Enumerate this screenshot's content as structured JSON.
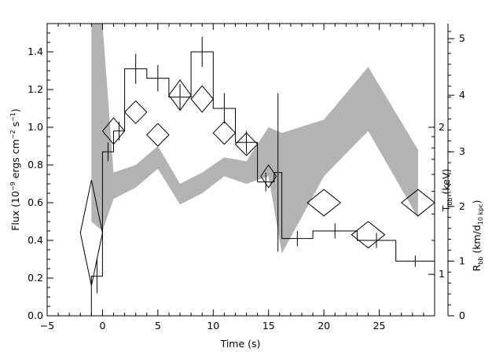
{
  "chart_data": {
    "type": "line",
    "xlabel": "Time (s)",
    "ylabel_left": {
      "main": "Flux (10",
      "sup1": "−9",
      "mid1": " ergs cm",
      "sup2": "−2",
      "mid2": " s",
      "sup3": "−1",
      "end": ")"
    },
    "ylabel_right_inner": {
      "main": "T",
      "sub": "bb",
      "end": " (keV)"
    },
    "ylabel_right_outer": {
      "main": "R",
      "sub": "bb",
      "mid": " (km/d",
      "sub2": "10 kpc",
      "end": ")"
    },
    "xlim": [
      -5,
      30
    ],
    "ylim": [
      0,
      1.55
    ],
    "x_ticks": [
      {
        "v": -5,
        "label": "−5"
      },
      {
        "v": 0,
        "label": "0"
      },
      {
        "v": 5,
        "label": "5"
      },
      {
        "v": 10,
        "label": "10"
      },
      {
        "v": 15,
        "label": "15"
      },
      {
        "v": 20,
        "label": "20"
      },
      {
        "v": 25,
        "label": "25"
      }
    ],
    "y_ticks": [
      {
        "v": 0.0,
        "label": "0.0"
      },
      {
        "v": 0.2,
        "label": "0.2"
      },
      {
        "v": 0.4,
        "label": "0.4"
      },
      {
        "v": 0.6,
        "label": "0.6"
      },
      {
        "v": 0.8,
        "label": "0.8"
      },
      {
        "v": 1.0,
        "label": "1.0"
      },
      {
        "v": 1.2,
        "label": "1.2"
      },
      {
        "v": 1.4,
        "label": "1.4"
      }
    ],
    "right_inner_axis": {
      "scale": "log",
      "ticks": [
        {
          "v": 1,
          "label": "1",
          "flux": 0.22
        },
        {
          "v": 2,
          "label": "2",
          "flux": 1.0
        }
      ],
      "minor_flux": [
        0.4,
        0.54,
        0.66,
        0.75,
        0.83,
        0.89,
        0.95
      ]
    },
    "right_outer_axis": {
      "scale": "linear",
      "ticks": [
        {
          "v": 0,
          "label": "0",
          "flux": 0.0
        },
        {
          "v": 1,
          "label": "1",
          "flux": 0.29
        },
        {
          "v": 2,
          "label": "2",
          "flux": 0.58
        },
        {
          "v": 3,
          "label": "3",
          "flux": 0.87
        },
        {
          "v": 4,
          "label": "4",
          "flux": 1.17
        },
        {
          "v": 5,
          "label": "5",
          "flux": 1.47
        }
      ]
    },
    "flux_histogram": [
      {
        "x0": -1.0,
        "x1": 0.0,
        "y": 0.21,
        "err": 0.09
      },
      {
        "x0": 0.0,
        "x1": 1.0,
        "y": 0.87,
        "err": 0.05
      },
      {
        "x0": 1.0,
        "x1": 2.0,
        "y": 0.98,
        "err": 0.05
      },
      {
        "x0": 2.0,
        "x1": 4.0,
        "y": 1.31,
        "err": 0.08
      },
      {
        "x0": 4.0,
        "x1": 6.0,
        "y": 1.26,
        "err": 0.07
      },
      {
        "x0": 6.0,
        "x1": 8.0,
        "y": 1.16,
        "err": 0.07
      },
      {
        "x0": 8.0,
        "x1": 10.0,
        "y": 1.4,
        "err": 0.08
      },
      {
        "x0": 10.0,
        "x1": 12.0,
        "y": 1.1,
        "err": 0.08
      },
      {
        "x0": 12.0,
        "x1": 14.0,
        "y": 0.92,
        "err": 0.06
      },
      {
        "x0": 14.0,
        "x1": 15.5,
        "y": 0.71,
        "err": 0.05
      },
      {
        "x0": 15.5,
        "x1": 16.2,
        "y": 0.76,
        "err": 0.42
      },
      {
        "x0": 16.2,
        "x1": 19.0,
        "y": 0.41,
        "err": 0.04
      },
      {
        "x0": 19.0,
        "x1": 23.0,
        "y": 0.45,
        "err": 0.04
      },
      {
        "x0": 23.0,
        "x1": 26.5,
        "y": 0.4,
        "err": 0.04
      },
      {
        "x0": 26.5,
        "x1": 30.0,
        "y": 0.29,
        "err": 0.03
      }
    ],
    "temperature_diamonds": [
      {
        "x": -1.0,
        "xerr": 1.0,
        "y": 0.44,
        "yerr": 0.28
      },
      {
        "x": 1.0,
        "xerr": 1.0,
        "y": 0.98,
        "yerr": 0.07
      },
      {
        "x": 3.0,
        "xerr": 1.0,
        "y": 1.08,
        "yerr": 0.06
      },
      {
        "x": 5.0,
        "xerr": 1.0,
        "y": 0.96,
        "yerr": 0.06
      },
      {
        "x": 7.0,
        "xerr": 1.0,
        "y": 1.17,
        "yerr": 0.08
      },
      {
        "x": 9.0,
        "xerr": 1.0,
        "y": 1.15,
        "yerr": 0.07
      },
      {
        "x": 11.0,
        "xerr": 1.0,
        "y": 0.97,
        "yerr": 0.06
      },
      {
        "x": 13.0,
        "xerr": 1.0,
        "y": 0.91,
        "yerr": 0.06
      },
      {
        "x": 15.0,
        "xerr": 0.7,
        "y": 0.74,
        "yerr": 0.06
      },
      {
        "x": 20.0,
        "xerr": 1.5,
        "y": 0.6,
        "yerr": 0.07
      },
      {
        "x": 24.0,
        "xerr": 1.5,
        "y": 0.43,
        "yerr": 0.07
      },
      {
        "x": 28.5,
        "xerr": 1.5,
        "y": 0.6,
        "yerr": 0.07
      }
    ],
    "radius_band": [
      {
        "x": -1.0,
        "lo": 0.5,
        "hi": 1.55
      },
      {
        "x": 0.0,
        "lo": 0.45,
        "hi": 1.55
      },
      {
        "x": 1.0,
        "lo": 0.62,
        "hi": 0.76
      },
      {
        "x": 3.0,
        "lo": 0.68,
        "hi": 0.8
      },
      {
        "x": 5.0,
        "lo": 0.78,
        "hi": 0.9
      },
      {
        "x": 7.0,
        "lo": 0.59,
        "hi": 0.7
      },
      {
        "x": 9.0,
        "lo": 0.65,
        "hi": 0.76
      },
      {
        "x": 11.0,
        "lo": 0.74,
        "hi": 0.84
      },
      {
        "x": 13.0,
        "lo": 0.7,
        "hi": 0.82
      },
      {
        "x": 15.0,
        "lo": 0.74,
        "hi": 1.0
      },
      {
        "x": 16.2,
        "lo": 0.33,
        "hi": 0.97
      },
      {
        "x": 20.0,
        "lo": 0.74,
        "hi": 1.04
      },
      {
        "x": 24.0,
        "lo": 0.98,
        "hi": 1.32
      },
      {
        "x": 28.5,
        "lo": 0.52,
        "hi": 0.88
      }
    ],
    "grid": false,
    "colors": {
      "axis": "#000000",
      "band": "#b3b3b3",
      "lines": "#000000",
      "background": "#ffffff"
    }
  }
}
